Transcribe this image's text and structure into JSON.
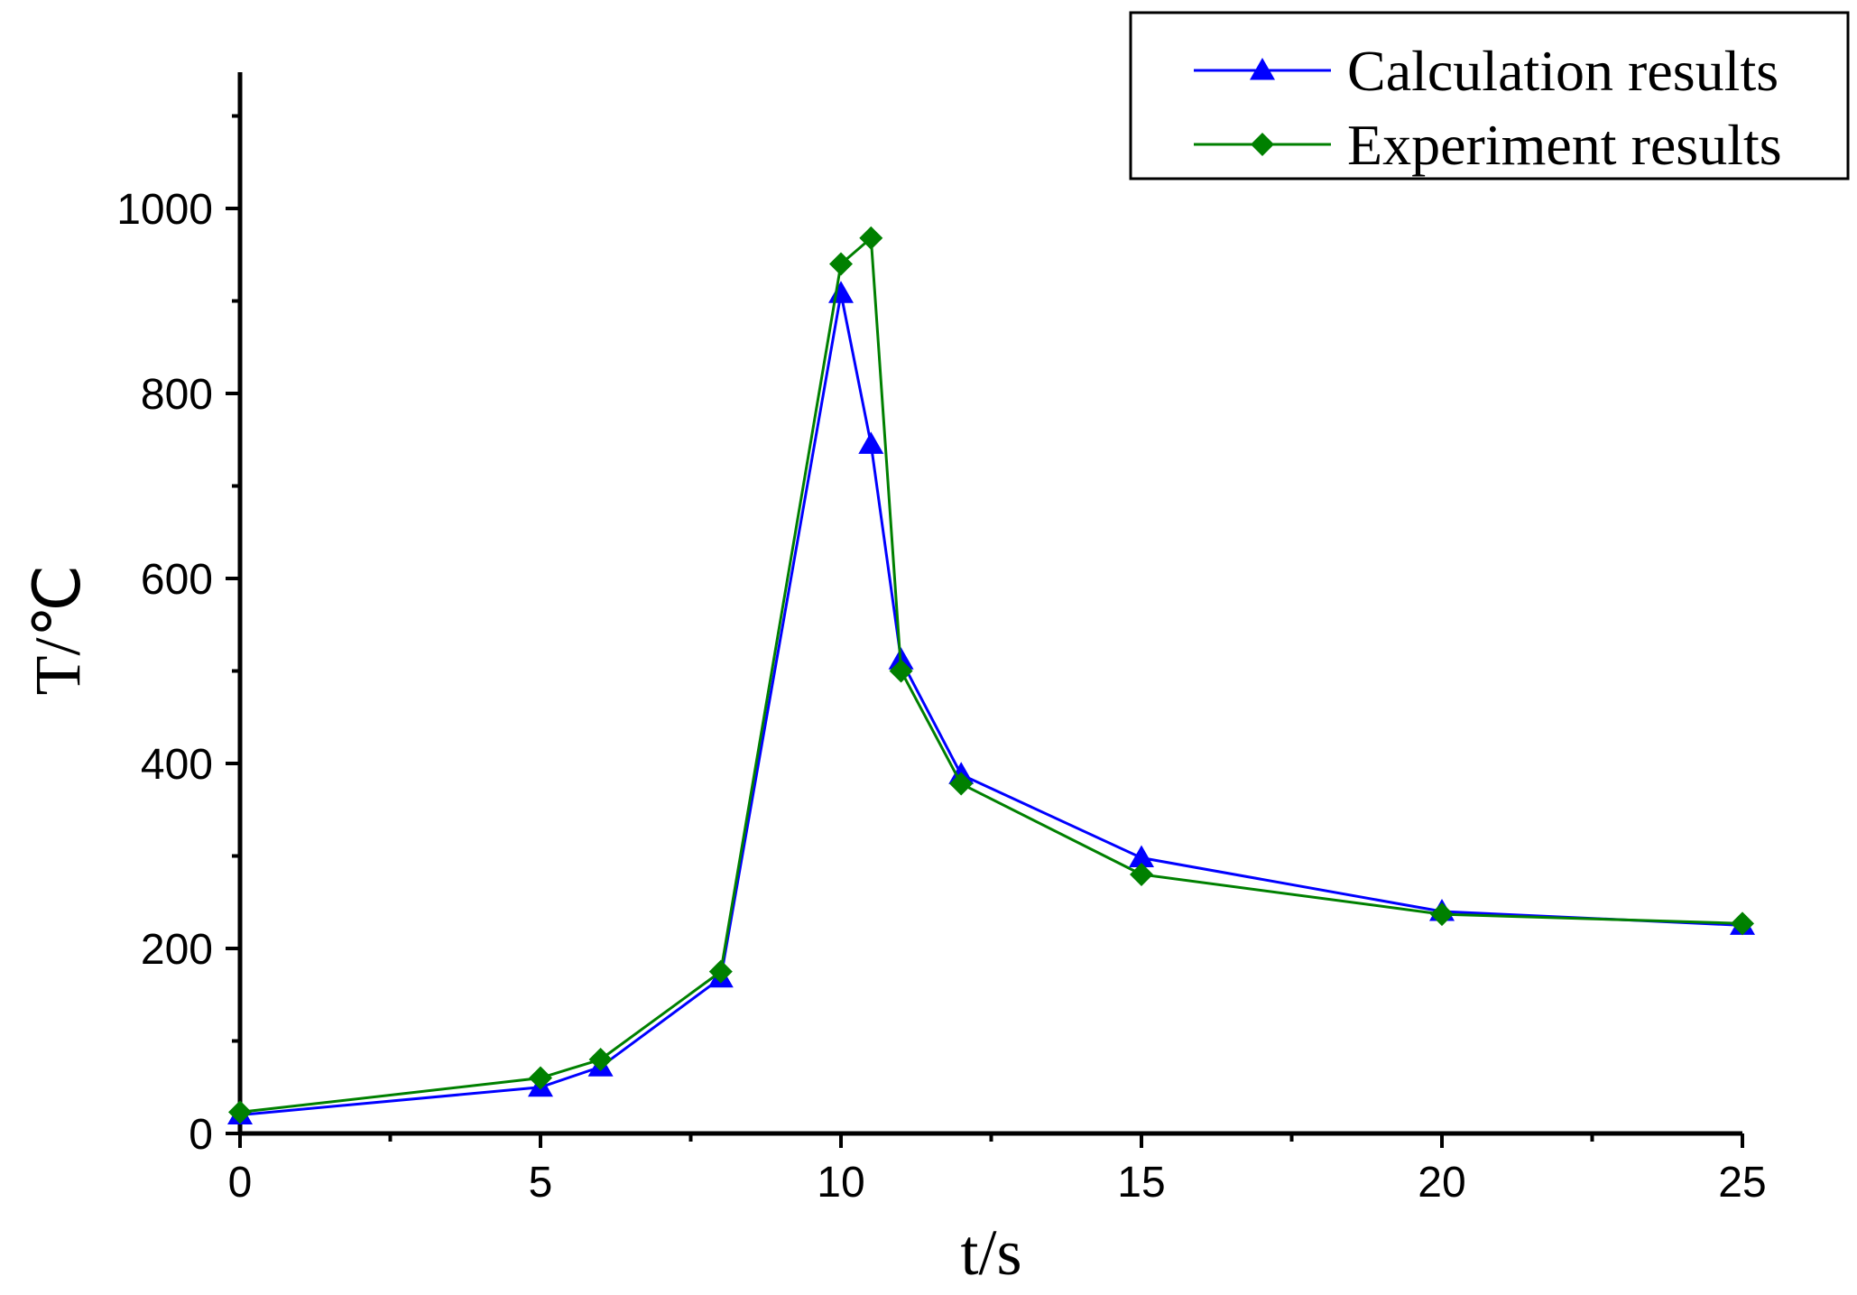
{
  "chart_data": {
    "type": "line",
    "xlabel": "t/s",
    "ylabel": "T/℃",
    "xlim": [
      0,
      25
    ],
    "ylim": [
      0,
      1150
    ],
    "x_ticks": [
      0,
      5,
      10,
      15,
      20,
      25
    ],
    "y_ticks": [
      0,
      200,
      400,
      600,
      800,
      1000
    ],
    "x_minor_step": 2.5,
    "y_minor_step": 100,
    "grid": false,
    "legend_position": "top-right",
    "series": [
      {
        "name": "Calculation results",
        "color": "#0000FF",
        "marker": "triangle",
        "x": [
          0,
          5,
          6,
          8,
          10,
          10.5,
          11,
          12,
          15,
          20,
          25
        ],
        "y": [
          20,
          50,
          72,
          168,
          908,
          745,
          512,
          388,
          298,
          240,
          225
        ]
      },
      {
        "name": "Experiment  results",
        "color": "#008000",
        "marker": "diamond",
        "x": [
          0,
          5,
          6,
          8,
          10,
          10.5,
          11,
          12,
          15,
          20,
          25
        ],
        "y": [
          23,
          60,
          80,
          175,
          940,
          968,
          500,
          378,
          280,
          237,
          227
        ]
      }
    ]
  }
}
